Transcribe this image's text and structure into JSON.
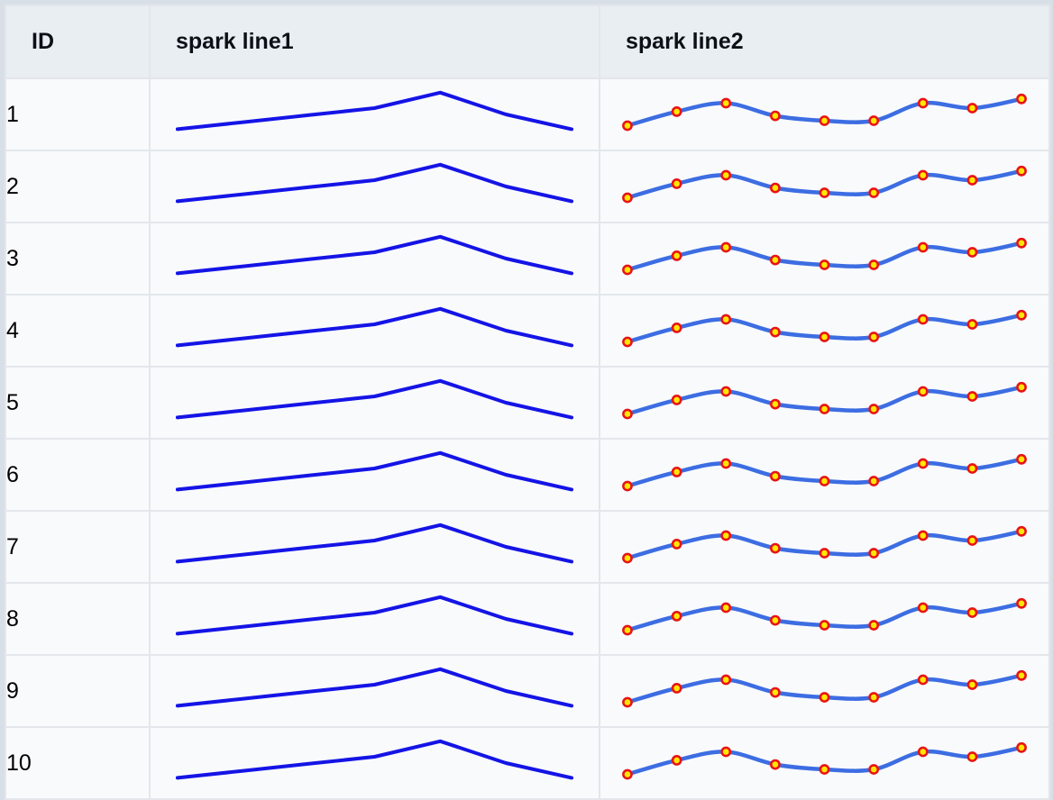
{
  "colors": {
    "page_bg": "#d9dfe6",
    "header_bg": "#e9eef3",
    "row_bg": "#f9fafc",
    "border_color": "#e3e7ec",
    "spark1_line": "#1414e6",
    "spark2_line": "#3c6de2",
    "spark2_marker_fill": "#ffe800",
    "spark2_marker_stroke": "#e81414"
  },
  "table": {
    "header": {
      "columns": [
        {
          "key": "id",
          "label": "ID"
        },
        {
          "key": "spark1",
          "label": "spark line1"
        },
        {
          "key": "spark2",
          "label": "spark line2"
        }
      ]
    },
    "rows": [
      {
        "id": "1"
      },
      {
        "id": "2"
      },
      {
        "id": "3"
      },
      {
        "id": "4"
      },
      {
        "id": "5"
      },
      {
        "id": "6"
      },
      {
        "id": "7"
      },
      {
        "id": "8"
      },
      {
        "id": "9"
      },
      {
        "id": "10"
      }
    ]
  },
  "chart_data": [
    {
      "type": "line",
      "name": "spark line1",
      "note": "identical sparkline rendered in every row; no axes shown, values estimated on 0-10 scale",
      "x": [
        1,
        2,
        3,
        4,
        5,
        6,
        7
      ],
      "values": [
        2.9,
        3.9,
        4.9,
        5.9,
        8.1,
        5.0,
        2.9
      ],
      "smooth": false,
      "markers": false,
      "line_color": "#1414e6",
      "line_width": 4,
      "legend": "none",
      "grid": "off"
    },
    {
      "type": "line",
      "name": "spark line2",
      "note": "identical sparkline rendered in every row; no axes shown, values estimated on 0-10 scale",
      "x": [
        1,
        2,
        3,
        4,
        5,
        6,
        7,
        8,
        9
      ],
      "values": [
        3.4,
        5.4,
        6.6,
        4.8,
        4.1,
        4.1,
        6.6,
        5.9,
        7.2
      ],
      "smooth": true,
      "markers": true,
      "marker_fill": "#ffe800",
      "marker_stroke": "#e81414",
      "line_color": "#3c6de2",
      "line_width": 4.5,
      "legend": "none",
      "grid": "off"
    }
  ]
}
